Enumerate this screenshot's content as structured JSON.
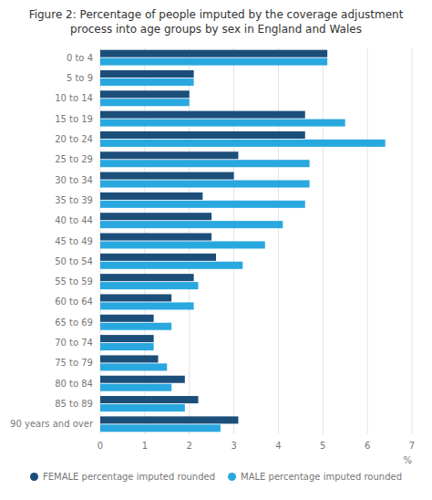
{
  "chart_data": {
    "type": "bar",
    "orientation": "horizontal",
    "title": "Figure 2: Percentage of people imputed by the coverage adjustment",
    "subtitle": "process into age groups by sex in England and Wales",
    "xlabel": "%",
    "categories": [
      "0 to 4",
      "5 to 9",
      "10 to 14",
      "15 to 19",
      "20 to 24",
      "25 to 29",
      "30 to 34",
      "35 to 39",
      "40 to 44",
      "45 to 49",
      "50 to 54",
      "55 to 59",
      "60 to 64",
      "65 to 69",
      "70 to 74",
      "75 to 79",
      "80 to 84",
      "85 to 89",
      "90 years and over"
    ],
    "series": [
      {
        "name": "FEMALE percentage imputed rounded",
        "color": "#1c4e7a",
        "values": [
          5.1,
          2.1,
          2.0,
          4.6,
          4.6,
          3.1,
          3.0,
          2.3,
          2.5,
          2.5,
          2.6,
          2.1,
          1.6,
          1.2,
          1.2,
          1.3,
          1.9,
          2.2,
          3.1
        ]
      },
      {
        "name": "MALE percentage imputed rounded",
        "color": "#29a8e0",
        "values": [
          5.1,
          2.1,
          2.0,
          5.5,
          6.4,
          4.7,
          4.7,
          4.6,
          4.1,
          3.7,
          3.2,
          2.2,
          2.1,
          1.6,
          1.2,
          1.5,
          1.6,
          1.9,
          2.7
        ]
      }
    ],
    "xlim": [
      0,
      7
    ],
    "xticks": [
      0,
      1,
      2,
      3,
      4,
      5,
      6,
      7
    ],
    "grid": true,
    "legend": "bottom"
  }
}
